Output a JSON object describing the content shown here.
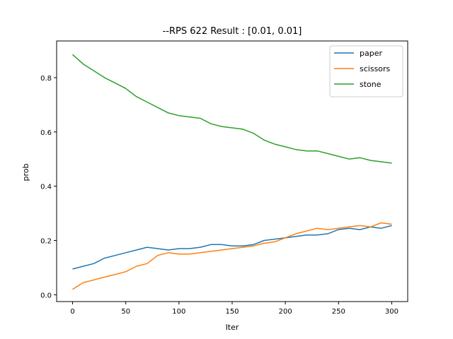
{
  "chart_data": {
    "type": "line",
    "title": "--RPS 622 Result : [0.01, 0.01]",
    "xlabel": "Iter",
    "ylabel": "prob",
    "xlim": [
      -15,
      315
    ],
    "ylim": [
      -0.025,
      0.935
    ],
    "xticks": [
      0,
      50,
      100,
      150,
      200,
      250,
      300
    ],
    "yticks": [
      0.0,
      0.2,
      0.4,
      0.6,
      0.8
    ],
    "grid": false,
    "legend_position": "top-right",
    "x": [
      0,
      10,
      20,
      30,
      40,
      50,
      60,
      70,
      80,
      90,
      100,
      110,
      120,
      130,
      140,
      150,
      160,
      170,
      180,
      190,
      200,
      210,
      220,
      230,
      240,
      250,
      260,
      270,
      280,
      290,
      300
    ],
    "series": [
      {
        "name": "paper",
        "color": "#1f77b4",
        "values": [
          0.095,
          0.105,
          0.115,
          0.135,
          0.145,
          0.155,
          0.165,
          0.175,
          0.17,
          0.165,
          0.17,
          0.17,
          0.175,
          0.185,
          0.185,
          0.18,
          0.18,
          0.185,
          0.2,
          0.205,
          0.21,
          0.215,
          0.22,
          0.22,
          0.225,
          0.24,
          0.245,
          0.24,
          0.25,
          0.245,
          0.255
        ]
      },
      {
        "name": "scissors",
        "color": "#ff7f0e",
        "values": [
          0.02,
          0.045,
          0.055,
          0.065,
          0.075,
          0.085,
          0.105,
          0.115,
          0.145,
          0.155,
          0.15,
          0.15,
          0.155,
          0.16,
          0.165,
          0.17,
          0.175,
          0.18,
          0.19,
          0.195,
          0.21,
          0.225,
          0.235,
          0.245,
          0.24,
          0.245,
          0.25,
          0.255,
          0.25,
          0.265,
          0.26
        ]
      },
      {
        "name": "stone",
        "color": "#2ca02c",
        "values": [
          0.885,
          0.85,
          0.825,
          0.8,
          0.78,
          0.76,
          0.73,
          0.71,
          0.69,
          0.67,
          0.66,
          0.655,
          0.65,
          0.63,
          0.62,
          0.615,
          0.61,
          0.595,
          0.57,
          0.555,
          0.545,
          0.535,
          0.53,
          0.53,
          0.52,
          0.51,
          0.5,
          0.505,
          0.495,
          0.49,
          0.485
        ]
      }
    ]
  }
}
